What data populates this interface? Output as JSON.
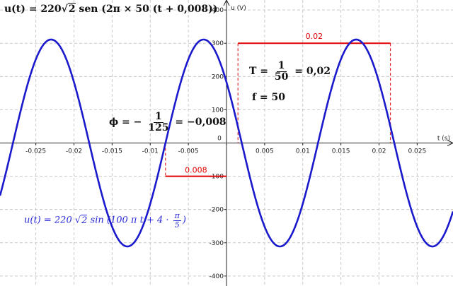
{
  "chart_data": {
    "type": "line",
    "title": "u(t) = 220√2 sen(2π × 50 (t + 0,008))",
    "xlabel": "t (s)",
    "ylabel": "u (V)",
    "xlim": [
      -0.0297,
      0.0297
    ],
    "ylim": [
      -430,
      430
    ],
    "x_ticks": [
      -0.025,
      -0.02,
      -0.015,
      -0.01,
      -0.005,
      0,
      0.005,
      0.01,
      0.015,
      0.02,
      0.025
    ],
    "x_tick_labels": [
      "-0.025",
      "-0.02",
      "-0.015",
      "-0.01",
      "-0.005",
      "0",
      "0.005",
      "0.01",
      "0.015",
      "0.02",
      "0.025"
    ],
    "y_ticks": [
      -400,
      -300,
      -200,
      -100,
      0,
      100,
      200,
      300,
      400
    ],
    "y_tick_labels": [
      "-400",
      "-300",
      "-200",
      "-100",
      "0",
      "100",
      "200",
      "300",
      "400"
    ],
    "grid": true,
    "series": [
      {
        "expression": "u(t) = 220 √2 sin(100 π t + 4·π/5)",
        "amplitude": 311.13,
        "frequency": 50,
        "time_shift": 0.008,
        "color": "#1a1acc"
      }
    ],
    "annotations": {
      "period_label": "0.02",
      "period_start": 0.0015,
      "period_end": 0.0215,
      "period_level": 300,
      "shift_label": "0.008",
      "shift_start": -0.008,
      "shift_end": 0,
      "shift_level": -100,
      "marker_color": "#e00000"
    }
  },
  "formulas": {
    "title_lhs": "u(t) = 220",
    "title_sqrt": "2",
    "title_rhs": " sen (2π × 50 (t + 0,008))",
    "period_lhs": "T =",
    "period_num": "1",
    "period_den": "50",
    "period_rhs": "= 0,02",
    "freq": "f = 50",
    "phi_lhs": "ϕ = −",
    "phi_num": "1",
    "phi_den": "125",
    "phi_rhs": "= −0,008",
    "eq_lhs": "u(t)  =  220 ",
    "eq_sqrt": "2",
    "eq_mid": " sin ⁣(100 π t + 4 · ",
    "eq_num": "π",
    "eq_den": "5",
    "eq_rhs": ")"
  }
}
